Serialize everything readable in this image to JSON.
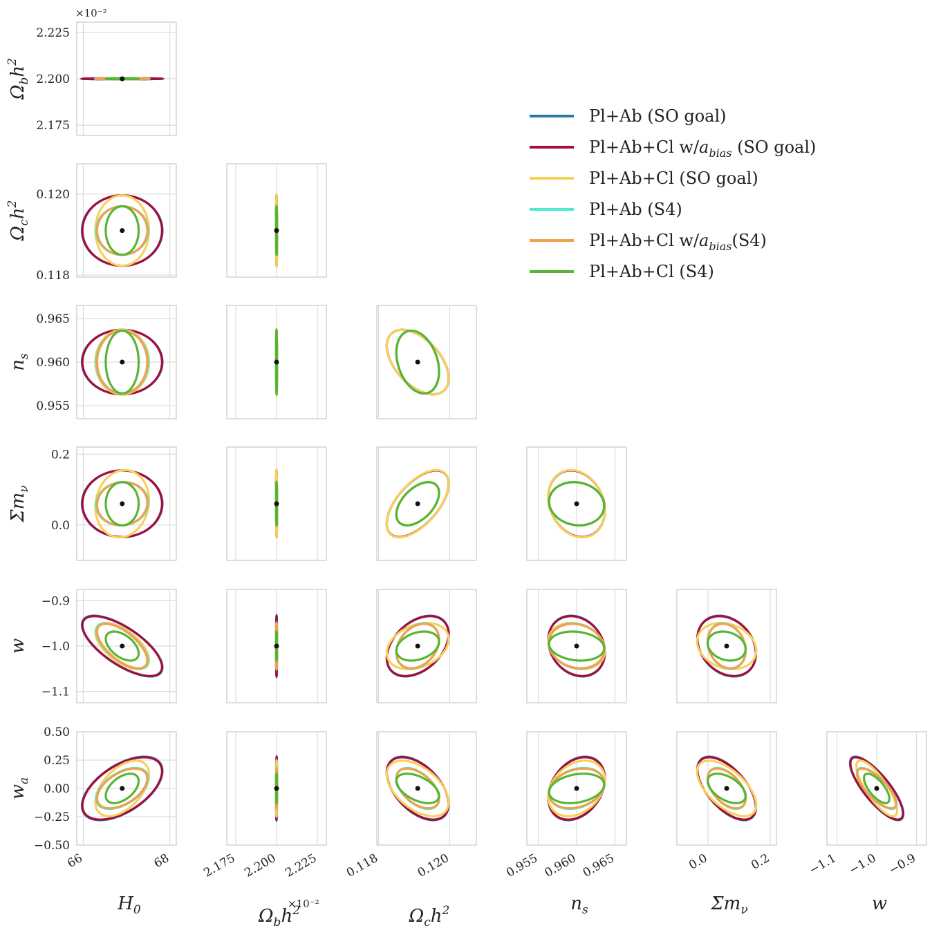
{
  "chart_data": {
    "type": "corner",
    "parameters": [
      {
        "key": "H0",
        "label_main": "H",
        "label_sub": "0",
        "label_sup": "",
        "fiducial": 66.9,
        "lim": [
          65.85,
          68.15
        ],
        "ticks": [
          66,
          68
        ],
        "tick_labels": [
          "66",
          "68"
        ],
        "multiplier": ""
      },
      {
        "key": "obh2",
        "label_main": "Ωbh",
        "label_sub": "",
        "label_sup": "2",
        "fiducial": 2.2,
        "lim": [
          2.1695,
          2.2305
        ],
        "ticks": [
          2.175,
          2.2,
          2.225
        ],
        "tick_labels": [
          "2.175",
          "2.200",
          "2.225"
        ],
        "multiplier": "×10⁻²"
      },
      {
        "key": "och2",
        "label_main": "Ωch",
        "label_sub": "",
        "label_sup": "2",
        "fiducial": 0.1191,
        "lim": [
          0.11795,
          0.12075
        ],
        "ticks": [
          0.118,
          0.12
        ],
        "tick_labels": [
          "0.118",
          "0.120"
        ],
        "multiplier": ""
      },
      {
        "key": "ns",
        "label_main": "n",
        "label_sub": "s",
        "label_sup": "",
        "fiducial": 0.96,
        "lim": [
          0.9535,
          0.9665
        ],
        "ticks": [
          0.955,
          0.96,
          0.965
        ],
        "tick_labels": [
          "0.955",
          "0.960",
          "0.965"
        ],
        "multiplier": ""
      },
      {
        "key": "mnu",
        "label_main": "Σm",
        "label_sub": "ν",
        "label_sup": "",
        "fiducial": 0.06,
        "lim": [
          -0.1,
          0.22
        ],
        "ticks": [
          0.0,
          0.2
        ],
        "tick_labels": [
          "0.0",
          "0.2"
        ],
        "multiplier": ""
      },
      {
        "key": "w",
        "label_main": "w",
        "label_sub": "",
        "label_sup": "",
        "fiducial": -1.0,
        "lim": [
          -1.125,
          -0.875
        ],
        "ticks": [
          -1.1,
          -1.0,
          -0.9
        ],
        "tick_labels": [
          "−1.1",
          "−1.0",
          "−0.9"
        ],
        "multiplier": ""
      },
      {
        "key": "wa",
        "label_main": "w",
        "label_sub": "a",
        "label_sup": "",
        "fiducial": 0.0,
        "lim": [
          -0.5,
          0.5
        ],
        "ticks": [
          -0.5,
          -0.25,
          0.0,
          0.25,
          0.5
        ],
        "tick_labels": [
          "−0.50",
          "−0.25",
          "0.00",
          "0.25",
          "0.50"
        ],
        "multiplier": ""
      }
    ],
    "series": [
      {
        "name": "Pl+Ab (SO goal)",
        "label_parts": [
          "Pl+Ab (SO goal)"
        ],
        "color": "#2e78a8",
        "sigma": [
          0.93,
          0.00028,
          0.00087,
          0.0037,
          0.094,
          0.067,
          0.28
        ],
        "rho": {
          "0-1": 0.05,
          "0-2": 0.0,
          "0-3": 0.0,
          "0-4": 0.0,
          "0-5": -0.7,
          "0-6": 0.55,
          "1-2": -0.15,
          "1-3": -0.15,
          "1-4": -0.2,
          "1-5": 0.0,
          "1-6": 0.2,
          "2-3": -0.5,
          "2-4": 0.6,
          "2-5": 0.4,
          "2-6": -0.5,
          "3-4": -0.2,
          "3-5": -0.2,
          "3-6": 0.3,
          "4-5": -0.25,
          "4-6": -0.6,
          "5-6": -0.8
        }
      },
      {
        "name": "Pl+Ab+Cl w/abias (SO goal)",
        "label_parts": [
          "Pl+Ab+Cl w/",
          "a",
          "bias",
          " (SO goal)"
        ],
        "color": "#a20e3f",
        "sigma": [
          0.92,
          0.00028,
          0.00087,
          0.0037,
          0.094,
          0.066,
          0.275
        ],
        "rho": {
          "0-1": 0.05,
          "0-2": 0.0,
          "0-3": 0.0,
          "0-4": 0.0,
          "0-5": -0.7,
          "0-6": 0.55,
          "1-2": -0.15,
          "1-3": -0.15,
          "1-4": -0.2,
          "1-5": 0.0,
          "1-6": 0.2,
          "2-3": -0.5,
          "2-4": 0.6,
          "2-5": 0.4,
          "2-6": -0.5,
          "3-4": -0.2,
          "3-5": -0.2,
          "3-6": 0.3,
          "4-5": -0.25,
          "4-6": -0.6,
          "5-6": -0.8
        }
      },
      {
        "name": "Pl+Ab+Cl (SO goal)",
        "label_parts": [
          "Pl+Ab+Cl (SO goal)"
        ],
        "color": "#f8d05a",
        "sigma": [
          0.62,
          0.00028,
          0.00087,
          0.0037,
          0.095,
          0.051,
          0.245
        ],
        "rho": {
          "0-1": 0.0,
          "0-2": 0.0,
          "0-3": 0.0,
          "0-4": 0.1,
          "0-5": -0.6,
          "0-6": 0.5,
          "1-2": -0.15,
          "1-3": -0.15,
          "1-4": -0.2,
          "1-5": 0.0,
          "1-6": 0.2,
          "2-3": -0.5,
          "2-4": 0.6,
          "2-5": 0.3,
          "2-6": -0.5,
          "3-4": -0.2,
          "3-5": -0.2,
          "3-6": 0.3,
          "4-5": -0.2,
          "4-6": -0.6,
          "5-6": -0.8
        }
      },
      {
        "name": "Pl+Ab (S4)",
        "label_parts": [
          "Pl+Ab (S4)"
        ],
        "color": "#4ee8d2",
        "sigma": [
          0.6,
          0.00026,
          0.0006,
          0.0036,
          0.061,
          0.05,
          0.18
        ],
        "rho": {
          "0-1": 0.0,
          "0-2": 0.0,
          "0-3": 0.0,
          "0-4": 0.05,
          "0-5": -0.65,
          "0-6": 0.5,
          "1-2": -0.05,
          "1-3": -0.1,
          "1-4": -0.1,
          "1-5": 0.0,
          "1-6": 0.15,
          "2-3": -0.3,
          "2-4": 0.5,
          "2-5": 0.3,
          "2-6": -0.5,
          "3-4": -0.1,
          "3-5": -0.15,
          "3-6": 0.25,
          "4-5": -0.2,
          "4-6": -0.5,
          "5-6": -0.75
        }
      },
      {
        "name": "Pl+Ab+Cl w/abias(S4)",
        "label_parts": [
          "Pl+Ab+Cl w/",
          "a",
          "bias",
          "(S4)"
        ],
        "color": "#f3a04d",
        "sigma": [
          0.58,
          0.00026,
          0.0006,
          0.0036,
          0.061,
          0.049,
          0.175
        ],
        "rho": {
          "0-1": 0.0,
          "0-2": 0.0,
          "0-3": 0.0,
          "0-4": 0.05,
          "0-5": -0.65,
          "0-6": 0.5,
          "1-2": -0.05,
          "1-3": -0.1,
          "1-4": -0.1,
          "1-5": 0.0,
          "1-6": 0.15,
          "2-3": -0.3,
          "2-4": 0.5,
          "2-5": 0.3,
          "2-6": -0.5,
          "3-4": -0.1,
          "3-5": -0.15,
          "3-6": 0.25,
          "4-5": -0.2,
          "4-6": -0.5,
          "5-6": -0.75
        }
      },
      {
        "name": "Pl+Ab+Cl (S4)",
        "label_parts": [
          "Pl+Ab+Cl (S4)"
        ],
        "color": "#55b633",
        "sigma": [
          0.38,
          0.00026,
          0.0006,
          0.0036,
          0.061,
          0.032,
          0.13
        ],
        "rho": {
          "0-1": 0.0,
          "0-2": 0.0,
          "0-3": 0.0,
          "0-4": 0.0,
          "0-5": -0.5,
          "0-6": 0.5,
          "1-2": -0.05,
          "1-3": -0.1,
          "1-4": -0.1,
          "1-5": 0.0,
          "1-6": 0.15,
          "2-3": -0.3,
          "2-4": 0.5,
          "2-5": 0.3,
          "2-6": -0.5,
          "3-4": -0.1,
          "3-5": -0.15,
          "3-6": 0.25,
          "4-5": -0.2,
          "4-6": -0.5,
          "5-6": -0.7
        }
      }
    ],
    "legend": "top-right",
    "grid": true
  }
}
